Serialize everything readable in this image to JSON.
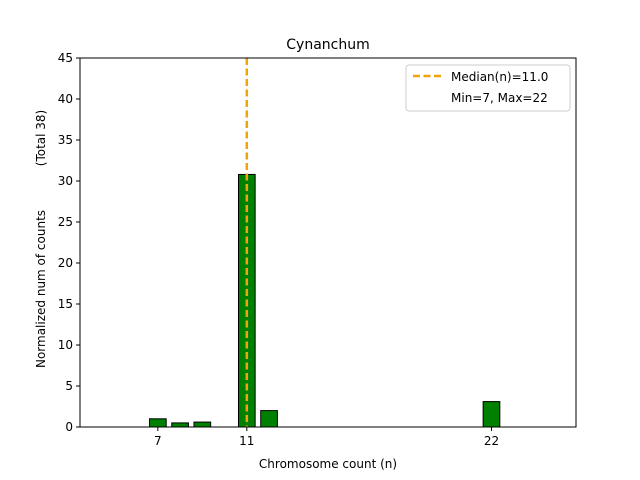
{
  "chart_data": {
    "type": "bar",
    "title": "Cynanchum",
    "xlabel": "Chromosome count (n)",
    "ylabel": "Normalized num of counts",
    "ylabel_note": "(Total 38)",
    "xlim": [
      3.5,
      25.8
    ],
    "ylim": [
      0,
      45
    ],
    "xticks": [
      7,
      11,
      22
    ],
    "yticks": [
      0,
      5,
      10,
      15,
      20,
      25,
      30,
      35,
      40,
      45
    ],
    "grid": false,
    "bar_color": "#008000",
    "bar_edge_color": "#000000",
    "bars": [
      {
        "x": 7,
        "value": 1.0
      },
      {
        "x": 8,
        "value": 0.5
      },
      {
        "x": 9,
        "value": 0.6
      },
      {
        "x": 11,
        "value": 30.8
      },
      {
        "x": 12,
        "value": 2.0
      },
      {
        "x": 22,
        "value": 3.1
      }
    ],
    "median": {
      "value": 11.0,
      "color": "#f0a30a",
      "style": "dashed"
    },
    "legend": {
      "placement": "top-right",
      "entries": [
        "Median(n)=11.0",
        "Min=7, Max=22"
      ]
    }
  }
}
